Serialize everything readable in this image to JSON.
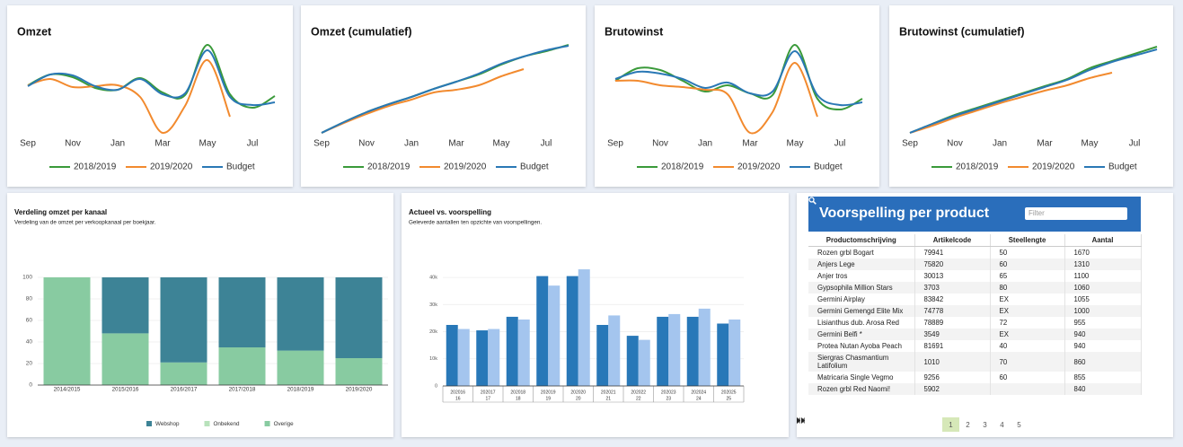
{
  "chart_data": [
    {
      "type": "line",
      "title": "Omzet",
      "categories": [
        "Sep",
        null,
        "Nov",
        null,
        "Jan",
        null,
        "Mar",
        null,
        "May",
        null,
        "Jul",
        null
      ],
      "series": [
        {
          "name": "2018/2019",
          "color": "#3a9a3a",
          "values": [
            65,
            77,
            74,
            62,
            60,
            73,
            57,
            54,
            110,
            55,
            40,
            53
          ]
        },
        {
          "name": "2019/2020",
          "color": "#f28a2e",
          "values": [
            65,
            72,
            63,
            64,
            65,
            52,
            12,
            42,
            93,
            30,
            null,
            null
          ]
        },
        {
          "name": "Budget",
          "color": "#2a78b5",
          "values": [
            64,
            77,
            76,
            64,
            60,
            72,
            55,
            56,
            104,
            52,
            43,
            46
          ]
        }
      ],
      "ylim": [
        0,
        120
      ],
      "legend": "bottom"
    },
    {
      "type": "line",
      "title": "Omzet (cumulatief)",
      "categories": [
        "Sep",
        null,
        "Nov",
        null,
        "Jan",
        null,
        "Mar",
        null,
        "May",
        null,
        "Jul",
        null
      ],
      "series": [
        {
          "name": "2018/2019",
          "color": "#3a9a3a",
          "values": [
            12,
            24,
            35,
            44,
            52,
            61,
            69,
            77,
            88,
            97,
            103,
            110
          ]
        },
        {
          "name": "2019/2020",
          "color": "#f28a2e",
          "values": [
            12,
            23,
            33,
            42,
            49,
            57,
            60,
            65,
            75,
            83,
            null,
            null
          ]
        },
        {
          "name": "Budget",
          "color": "#2a78b5",
          "values": [
            12,
            24,
            35,
            44,
            52,
            61,
            69,
            78,
            89,
            97,
            104,
            109
          ]
        }
      ],
      "ylim": [
        0,
        120
      ],
      "legend": "bottom"
    },
    {
      "type": "line",
      "title": "Brutowinst",
      "categories": [
        "Sep",
        null,
        "Nov",
        null,
        "Jan",
        null,
        "Mar",
        null,
        "May",
        null,
        "Jul",
        null
      ],
      "series": [
        {
          "name": "2018/2019",
          "color": "#3a9a3a",
          "values": [
            70,
            84,
            82,
            70,
            58,
            65,
            56,
            54,
            110,
            50,
            38,
            50
          ]
        },
        {
          "name": "2019/2020",
          "color": "#f28a2e",
          "values": [
            70,
            70,
            65,
            63,
            60,
            55,
            12,
            35,
            90,
            30,
            null,
            null
          ]
        },
        {
          "name": "Budget",
          "color": "#2a78b5",
          "values": [
            72,
            80,
            78,
            72,
            62,
            68,
            56,
            58,
            103,
            54,
            43,
            46
          ]
        }
      ],
      "ylim": [
        0,
        120
      ],
      "legend": "bottom"
    },
    {
      "type": "line",
      "title": "Brutowinst (cumulatief)",
      "categories": [
        "Sep",
        null,
        "Nov",
        null,
        "Jan",
        null,
        "Mar",
        null,
        "May",
        null,
        "Jul",
        null
      ],
      "series": [
        {
          "name": "2018/2019",
          "color": "#3a9a3a",
          "values": [
            12,
            22,
            32,
            40,
            48,
            56,
            64,
            72,
            84,
            92,
            100,
            108
          ]
        },
        {
          "name": "2019/2020",
          "color": "#f28a2e",
          "values": [
            12,
            20,
            29,
            37,
            45,
            52,
            59,
            65,
            73,
            79,
            null,
            null
          ]
        },
        {
          "name": "Budget",
          "color": "#2a78b5",
          "values": [
            12,
            22,
            31,
            39,
            47,
            55,
            63,
            71,
            82,
            91,
            98,
            105
          ]
        }
      ],
      "ylim": [
        0,
        120
      ],
      "legend": "bottom"
    },
    {
      "type": "bar",
      "title": "Verdeling omzet per kanaal",
      "subtitle": "Verdeling van de omzet per verkoopkanaal per boekjaar.",
      "categories": [
        "2014/2015",
        "2015/2016",
        "2016/2017",
        "2017/2018",
        "2018/2019",
        "2019/2020"
      ],
      "series": [
        {
          "name": "Webshop",
          "color": "#3d8396",
          "values": [
            0,
            52,
            79,
            65,
            68,
            75
          ]
        },
        {
          "name": "Onbekend",
          "color": "#b8e2bb",
          "values": [
            0,
            0,
            0,
            0,
            0,
            0
          ]
        },
        {
          "name": "Overige",
          "color": "#88cba1",
          "values": [
            100,
            48,
            21,
            35,
            32,
            25
          ]
        }
      ],
      "stacked": true,
      "ylim": [
        0,
        100
      ],
      "yticks": [
        0,
        20,
        40,
        60,
        80,
        100
      ],
      "grid": true,
      "legend": "bottom"
    },
    {
      "type": "bar",
      "title": "Actueel vs. voorspelling",
      "subtitle": "Geleverde aantallen ten opzichte van voorspellingen.",
      "categories": [
        [
          "202016",
          "16"
        ],
        [
          "202017",
          "17"
        ],
        [
          "202018",
          "18"
        ],
        [
          "202019",
          "19"
        ],
        [
          "202020",
          "20"
        ],
        [
          "202021",
          "21"
        ],
        [
          "202022",
          "22"
        ],
        [
          "202023",
          "23"
        ],
        [
          "202024",
          "24"
        ],
        [
          "202025",
          "25"
        ]
      ],
      "series": [
        {
          "color": "#2878b8",
          "values": [
            22500,
            20500,
            25500,
            40500,
            40500,
            22500,
            18500,
            25500,
            25500,
            23000
          ]
        },
        {
          "color": "#a4c5ee",
          "values": [
            21000,
            21000,
            24500,
            37000,
            43000,
            26000,
            17000,
            26500,
            28500,
            24500
          ]
        }
      ],
      "stacked": false,
      "ylim": [
        0,
        45000
      ],
      "yticks": [
        0,
        {
          "value": 10000,
          "label": "10k"
        },
        {
          "value": 20000,
          "label": "20k"
        },
        {
          "value": 30000,
          "label": "30k"
        },
        {
          "value": 40000,
          "label": "40k"
        }
      ],
      "grid": true
    }
  ],
  "table": {
    "title": "Voorspelling per product",
    "filter_placeholder": "Filter",
    "columns": [
      "Productomschrijving",
      "Artikelcode",
      "Steellengte",
      "Aantal"
    ],
    "rows": [
      [
        "Rozen grbl Bogart",
        "79941",
        "50",
        "1670"
      ],
      [
        "Anjers Lege",
        "75820",
        "60",
        "1310"
      ],
      [
        "Anjer tros",
        "30013",
        "65",
        "1100"
      ],
      [
        "Gypsophila Million Stars",
        "3703",
        "80",
        "1060"
      ],
      [
        "Germini Airplay",
        "83842",
        "EX",
        "1055"
      ],
      [
        "Germini Gemengd Elite Mix",
        "74778",
        "EX",
        "1000"
      ],
      [
        "Lisianthus dub. Arosa Red",
        "78889",
        "72",
        "955"
      ],
      [
        "Germini Belfi *",
        "3549",
        "EX",
        "940"
      ],
      [
        "Protea Nutan Ayoba Peach",
        "81691",
        "40",
        "940"
      ],
      [
        "Siergras Chasmantium Latifolium",
        "1010",
        "70",
        "860"
      ],
      [
        "Matricaria Single Vegmo",
        "9256",
        "60",
        "855"
      ],
      [
        "Rozen grbl Red Naomi!",
        "5902",
        null,
        "840"
      ]
    ],
    "pages": [
      1,
      2,
      3,
      4,
      5
    ],
    "current_page": 1
  }
}
